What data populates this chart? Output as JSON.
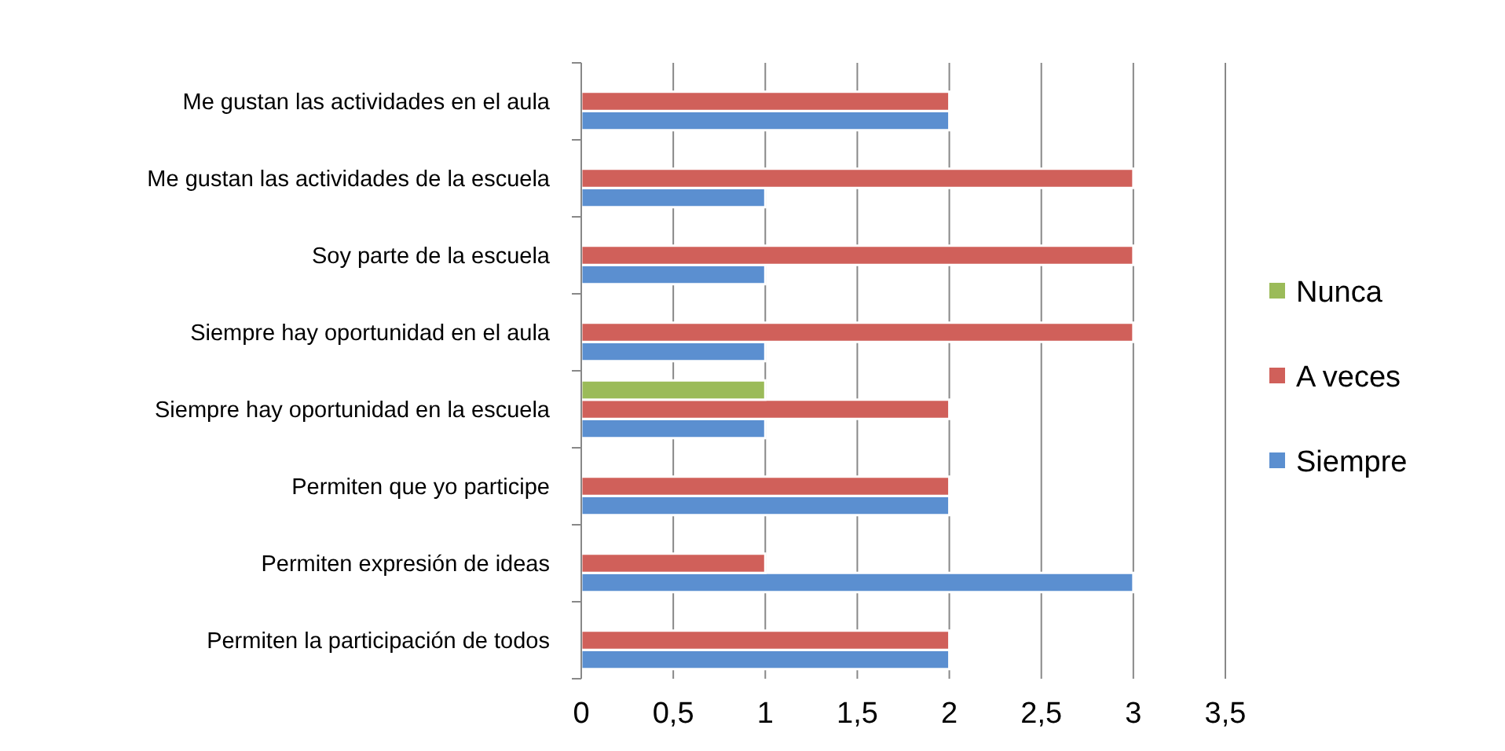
{
  "chart_data": {
    "type": "bar",
    "orientation": "horizontal",
    "categories": [
      "Me gustan las actividades en el aula",
      "Me gustan las actividades de la escuela",
      "Soy parte de la escuela",
      "Siempre hay oportunidad en el aula",
      "Siempre hay oportunidad en la escuela",
      "Permiten que yo participe",
      "Permiten expresión de ideas",
      "Permiten la participación de todos"
    ],
    "series": [
      {
        "name": "Siempre",
        "color": "#5b8fd0",
        "values": [
          2,
          1,
          1,
          1,
          1,
          2,
          3,
          2
        ]
      },
      {
        "name": "A veces",
        "color": "#d0605a",
        "values": [
          2,
          3,
          3,
          3,
          2,
          2,
          1,
          2
        ]
      },
      {
        "name": "Nunca",
        "color": "#9bbb59",
        "values": [
          null,
          null,
          null,
          null,
          1,
          null,
          null,
          null
        ]
      }
    ],
    "xlim": [
      0,
      3.5
    ],
    "xticks": [
      0,
      {
        "value": 0.5,
        "label": "0,5"
      },
      1,
      {
        "value": 1.5,
        "label": "1,5"
      },
      2,
      {
        "value": 2.5,
        "label": "2,5"
      },
      3,
      {
        "value": 3.5,
        "label": "3,5"
      }
    ],
    "grid": "x",
    "legend": "right"
  }
}
